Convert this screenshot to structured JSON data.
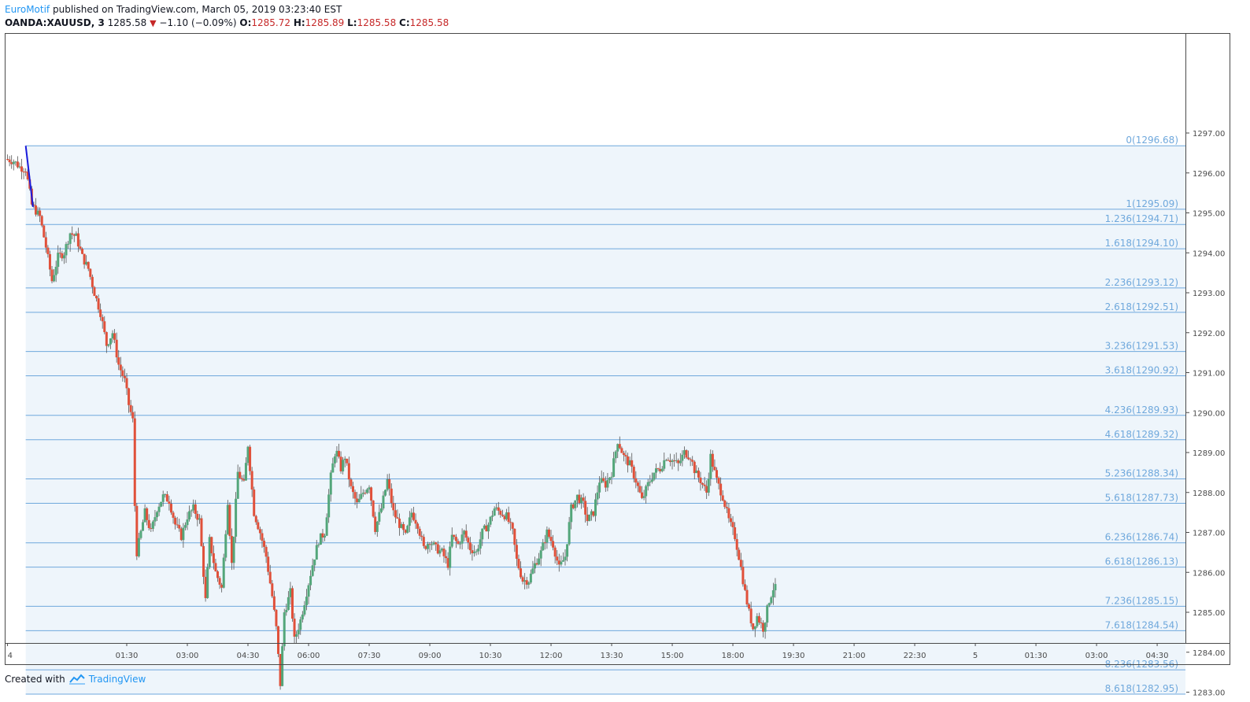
{
  "header": {
    "publisher": "EuroMotif",
    "published_text": " published on TradingView.com, March 05, 2019 03:23:40 EST",
    "symbol": "OANDA:XAUUSD, 3",
    "last": "1285.58",
    "change": "−1.10 (−0.09%)",
    "o_label": "O:",
    "o": "1285.72",
    "h_label": "H:",
    "h": "1285.89",
    "l_label": "L:",
    "l": "1285.58",
    "c_label": "C:",
    "c": "1285.58"
  },
  "footer": {
    "created_with": "Created with",
    "brand": "TradingView"
  },
  "colors": {
    "up": "#53a67a",
    "down": "#e0503a",
    "fib": "#6fa8dc",
    "fibfill": "#eef5fb",
    "trend": "#1a1adb"
  },
  "chart_data": {
    "type": "candlestick",
    "symbol": "OANDA:XAUUSD",
    "timeframe": "3",
    "ylim": [
      1282.9,
      1297.4
    ],
    "y_ticks": [
      1283,
      1284,
      1285,
      1286,
      1287,
      1288,
      1289,
      1290,
      1291,
      1292,
      1293,
      1294,
      1295,
      1296,
      1297
    ],
    "y_tick_labels": [
      "1283.00",
      "1284.00",
      "1285.00",
      "1286.00",
      "1287.00",
      "1288.00",
      "1289.00",
      "1290.00",
      "1291.00",
      "1292.00",
      "1293.00",
      "1294.00",
      "1295.00",
      "1296.00",
      "1297.00"
    ],
    "x_ticks": [
      {
        "label": "4",
        "t": -1.45
      },
      {
        "label": "01:30",
        "t": 1.5
      },
      {
        "label": "03:00",
        "t": 3.0
      },
      {
        "label": "04:30",
        "t": 4.5
      },
      {
        "label": "06:00",
        "t": 6.0
      },
      {
        "label": "07:30",
        "t": 7.5
      },
      {
        "label": "09:00",
        "t": 9.0
      },
      {
        "label": "10:30",
        "t": 10.5
      },
      {
        "label": "12:00",
        "t": 12.0
      },
      {
        "label": "13:30",
        "t": 13.5
      },
      {
        "label": "15:00",
        "t": 15.0
      },
      {
        "label": "18:00",
        "t": 16.5
      },
      {
        "label": "19:30",
        "t": 18.0
      },
      {
        "label": "21:00",
        "t": 19.5
      },
      {
        "label": "22:30",
        "t": 21.0
      },
      {
        "label": "5",
        "t": 22.5
      },
      {
        "label": "01:30",
        "t": 24.0
      },
      {
        "label": "03:00",
        "t": 25.5
      },
      {
        "label": "04:30",
        "t": 27.0
      }
    ],
    "fib_levels": [
      {
        "label": "0(1296.68)",
        "price": 1296.68
      },
      {
        "label": "1(1295.09)",
        "price": 1295.09
      },
      {
        "label": "1.236(1294.71)",
        "price": 1294.71
      },
      {
        "label": "1.618(1294.10)",
        "price": 1294.1
      },
      {
        "label": "2.236(1293.12)",
        "price": 1293.12
      },
      {
        "label": "2.618(1292.51)",
        "price": 1292.51
      },
      {
        "label": "3.236(1291.53)",
        "price": 1291.53
      },
      {
        "label": "3.618(1290.92)",
        "price": 1290.92
      },
      {
        "label": "4.236(1289.93)",
        "price": 1289.93
      },
      {
        "label": "4.618(1289.32)",
        "price": 1289.32
      },
      {
        "label": "5.236(1288.34)",
        "price": 1288.34
      },
      {
        "label": "5.618(1287.73)",
        "price": 1287.73
      },
      {
        "label": "6.236(1286.74)",
        "price": 1286.74
      },
      {
        "label": "6.618(1286.13)",
        "price": 1286.13
      },
      {
        "label": "7.236(1285.15)",
        "price": 1285.15
      },
      {
        "label": "7.618(1284.54)",
        "price": 1284.54
      },
      {
        "label": "8.236(1283.56)",
        "price": 1283.56
      },
      {
        "label": "8.618(1282.95)",
        "price": 1282.95
      }
    ],
    "fib_start_t": -1.0,
    "trend_line": [
      {
        "t": -1.0,
        "price": 1296.68
      },
      {
        "t": -0.82,
        "price": 1295.15
      }
    ],
    "price_path": [
      [
        -1.45,
        1296.35
      ],
      [
        -1.25,
        1296.3
      ],
      [
        -1.1,
        1296.15
      ],
      [
        -0.95,
        1296.1
      ],
      [
        -0.8,
        1295.2
      ],
      [
        -0.6,
        1294.9
      ],
      [
        -0.45,
        1294.15
      ],
      [
        -0.3,
        1293.3
      ],
      [
        -0.15,
        1293.9
      ],
      [
        0.0,
        1294.0
      ],
      [
        0.15,
        1294.5
      ],
      [
        0.3,
        1294.4
      ],
      [
        0.45,
        1293.9
      ],
      [
        0.6,
        1293.6
      ],
      [
        0.75,
        1293.0
      ],
      [
        0.9,
        1292.5
      ],
      [
        1.05,
        1291.7
      ],
      [
        1.2,
        1292.0
      ],
      [
        1.35,
        1291.2
      ],
      [
        1.5,
        1290.8
      ],
      [
        1.6,
        1290.2
      ],
      [
        1.7,
        1289.8
      ],
      [
        1.78,
        1286.4
      ],
      [
        1.9,
        1287.0
      ],
      [
        2.0,
        1287.5
      ],
      [
        2.15,
        1287.0
      ],
      [
        2.3,
        1287.6
      ],
      [
        2.45,
        1287.9
      ],
      [
        2.6,
        1287.8
      ],
      [
        2.75,
        1287.2
      ],
      [
        2.9,
        1286.9
      ],
      [
        3.05,
        1287.4
      ],
      [
        3.2,
        1287.6
      ],
      [
        3.35,
        1287.3
      ],
      [
        3.5,
        1285.3
      ],
      [
        3.6,
        1286.8
      ],
      [
        3.75,
        1286.0
      ],
      [
        3.9,
        1285.6
      ],
      [
        4.05,
        1287.8
      ],
      [
        4.15,
        1286.2
      ],
      [
        4.3,
        1288.5
      ],
      [
        4.45,
        1288.2
      ],
      [
        4.55,
        1289.2
      ],
      [
        4.7,
        1287.5
      ],
      [
        4.85,
        1287.0
      ],
      [
        5.0,
        1286.4
      ],
      [
        5.15,
        1285.4
      ],
      [
        5.25,
        1284.6
      ],
      [
        5.35,
        1283.2
      ],
      [
        5.45,
        1285.0
      ],
      [
        5.6,
        1285.5
      ],
      [
        5.7,
        1284.3
      ],
      [
        5.85,
        1284.8
      ],
      [
        6.0,
        1285.5
      ],
      [
        6.15,
        1286.2
      ],
      [
        6.3,
        1286.8
      ],
      [
        6.45,
        1287.0
      ],
      [
        6.6,
        1288.4
      ],
      [
        6.72,
        1289.1
      ],
      [
        6.85,
        1288.6
      ],
      [
        6.95,
        1288.9
      ],
      [
        7.1,
        1288.1
      ],
      [
        7.25,
        1287.7
      ],
      [
        7.4,
        1288.0
      ],
      [
        7.55,
        1288.2
      ],
      [
        7.7,
        1287.1
      ],
      [
        7.85,
        1287.6
      ],
      [
        8.0,
        1288.3
      ],
      [
        8.15,
        1287.5
      ],
      [
        8.3,
        1287.2
      ],
      [
        8.45,
        1286.9
      ],
      [
        8.6,
        1287.5
      ],
      [
        8.75,
        1287.2
      ],
      [
        8.9,
        1286.6
      ],
      [
        9.05,
        1286.8
      ],
      [
        9.2,
        1286.6
      ],
      [
        9.35,
        1286.5
      ],
      [
        9.5,
        1286.2
      ],
      [
        9.6,
        1286.9
      ],
      [
        9.75,
        1286.7
      ],
      [
        9.9,
        1287.0
      ],
      [
        10.05,
        1286.6
      ],
      [
        10.2,
        1286.5
      ],
      [
        10.35,
        1287.0
      ],
      [
        10.5,
        1287.2
      ],
      [
        10.65,
        1287.6
      ],
      [
        10.8,
        1287.5
      ],
      [
        10.95,
        1287.4
      ],
      [
        11.1,
        1287.0
      ],
      [
        11.2,
        1286.3
      ],
      [
        11.35,
        1285.8
      ],
      [
        11.5,
        1285.8
      ],
      [
        11.65,
        1286.2
      ],
      [
        11.8,
        1286.5
      ],
      [
        11.95,
        1287.0
      ],
      [
        12.1,
        1286.7
      ],
      [
        12.25,
        1286.1
      ],
      [
        12.4,
        1286.4
      ],
      [
        12.55,
        1287.6
      ],
      [
        12.7,
        1287.9
      ],
      [
        12.85,
        1287.7
      ],
      [
        12.95,
        1287.3
      ],
      [
        13.1,
        1287.5
      ],
      [
        13.25,
        1288.3
      ],
      [
        13.4,
        1288.2
      ],
      [
        13.55,
        1288.5
      ],
      [
        13.7,
        1289.3
      ],
      [
        13.85,
        1288.9
      ],
      [
        14.0,
        1288.7
      ],
      [
        14.15,
        1288.3
      ],
      [
        14.3,
        1287.8
      ],
      [
        14.45,
        1288.2
      ],
      [
        14.6,
        1288.5
      ],
      [
        14.75,
        1288.6
      ],
      [
        14.9,
        1288.9
      ],
      [
        15.05,
        1288.8
      ],
      [
        15.2,
        1288.7
      ],
      [
        15.35,
        1289.0
      ],
      [
        15.5,
        1288.9
      ],
      [
        15.62,
        1288.5
      ],
      [
        15.75,
        1288.3
      ],
      [
        15.9,
        1288.0
      ],
      [
        16.0,
        1288.9
      ],
      [
        16.15,
        1288.3
      ],
      [
        16.3,
        1287.9
      ],
      [
        16.45,
        1287.3
      ],
      [
        16.6,
        1286.9
      ],
      [
        16.72,
        1286.3
      ],
      [
        16.85,
        1285.5
      ],
      [
        16.95,
        1285.0
      ],
      [
        17.05,
        1284.6
      ],
      [
        17.15,
        1284.9
      ],
      [
        17.3,
        1284.6
      ],
      [
        17.45,
        1285.3
      ],
      [
        17.55,
        1285.6
      ]
    ],
    "x_range": [
      -1.5,
      27.7
    ]
  }
}
